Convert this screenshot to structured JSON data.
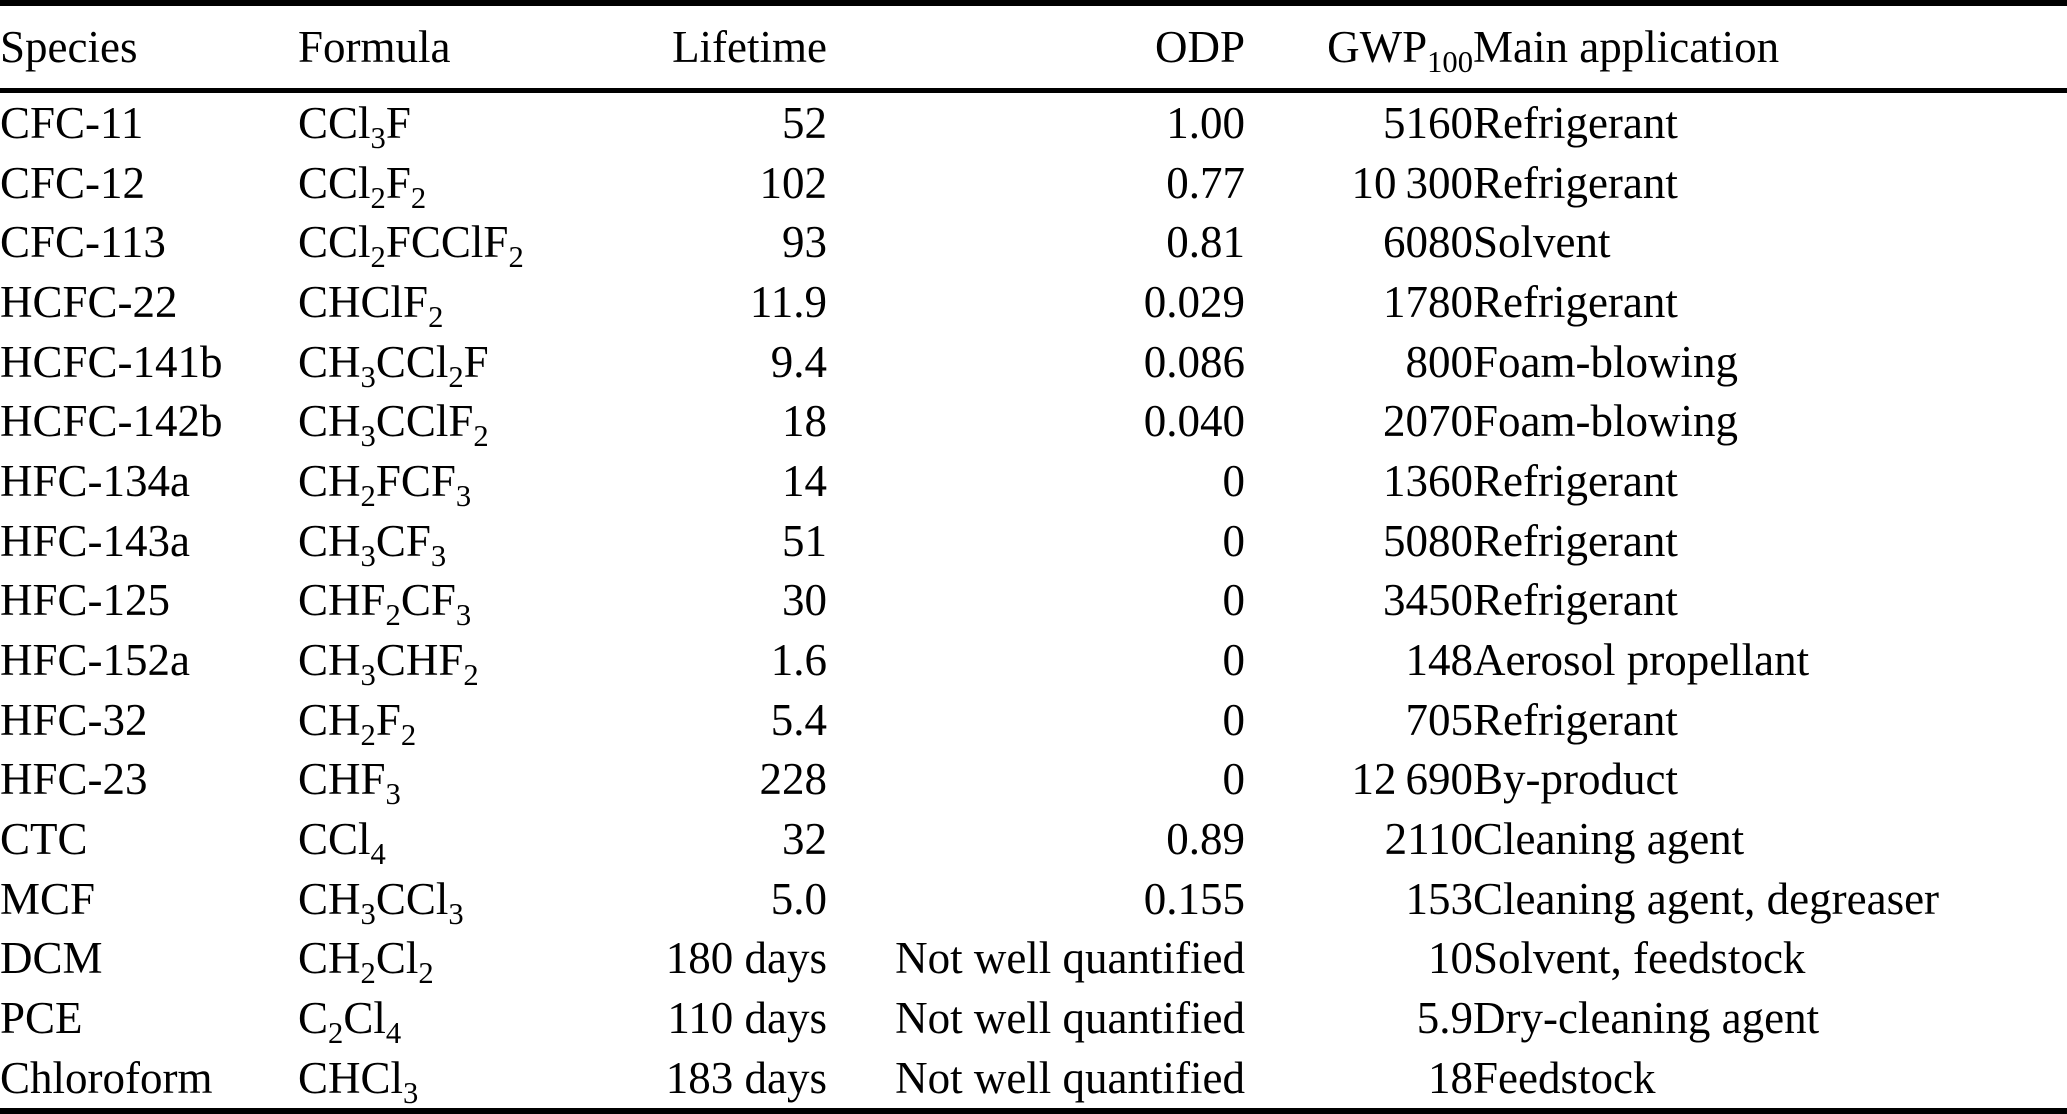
{
  "colors": {
    "text": "#000000",
    "background": "#ffffff",
    "rule": "#000000"
  },
  "table": {
    "columns": [
      {
        "key": "species",
        "label": "Species",
        "align": "left"
      },
      {
        "key": "formula",
        "label": "Formula",
        "align": "left"
      },
      {
        "key": "lifetime",
        "label": "Lifetime",
        "align": "right"
      },
      {
        "key": "odp",
        "label": "ODP",
        "align": "right"
      },
      {
        "key": "gwp",
        "label": "GWP_100_",
        "align": "right"
      },
      {
        "key": "app",
        "label": "Main application",
        "align": "left"
      }
    ],
    "rows": [
      {
        "species": "CFC-11",
        "formula": "CCl_3_F",
        "lifetime": "52",
        "odp": "1.00",
        "gwp": "5160",
        "app": "Refrigerant"
      },
      {
        "species": "CFC-12",
        "formula": "CCl_2_F_2_",
        "lifetime": "102",
        "odp": "0.77",
        "gwp": "10 300",
        "app": "Refrigerant"
      },
      {
        "species": "CFC-113",
        "formula": "CCl_2_FCClF_2_",
        "lifetime": "93",
        "odp": "0.81",
        "gwp": "6080",
        "app": "Solvent"
      },
      {
        "species": "HCFC-22",
        "formula": "CHClF_2_",
        "lifetime": "11.9",
        "odp": "0.029",
        "gwp": "1780",
        "app": "Refrigerant"
      },
      {
        "species": "HCFC-141b",
        "formula": "CH_3_CCl_2_F",
        "lifetime": "9.4",
        "odp": "0.086",
        "gwp": "800",
        "app": "Foam-blowing"
      },
      {
        "species": "HCFC-142b",
        "formula": "CH_3_CClF_2_",
        "lifetime": "18",
        "odp": "0.040",
        "gwp": "2070",
        "app": "Foam-blowing"
      },
      {
        "species": "HFC-134a",
        "formula": "CH_2_FCF_3_",
        "lifetime": "14",
        "odp": "0",
        "gwp": "1360",
        "app": "Refrigerant"
      },
      {
        "species": "HFC-143a",
        "formula": "CH_3_CF_3_",
        "lifetime": "51",
        "odp": "0",
        "gwp": "5080",
        "app": "Refrigerant"
      },
      {
        "species": "HFC-125",
        "formula": "CHF_2_CF_3_",
        "lifetime": "30",
        "odp": "0",
        "gwp": "3450",
        "app": "Refrigerant"
      },
      {
        "species": "HFC-152a",
        "formula": "CH_3_CHF_2_",
        "lifetime": "1.6",
        "odp": "0",
        "gwp": "148",
        "app": "Aerosol propellant"
      },
      {
        "species": "HFC-32",
        "formula": "CH_2_F_2_",
        "lifetime": "5.4",
        "odp": "0",
        "gwp": "705",
        "app": "Refrigerant"
      },
      {
        "species": "HFC-23",
        "formula": "CHF_3_",
        "lifetime": "228",
        "odp": "0",
        "gwp": "12 690",
        "app": "By-product"
      },
      {
        "species": "CTC",
        "formula": "CCl_4_",
        "lifetime": "32",
        "odp": "0.89",
        "gwp": "2110",
        "app": "Cleaning agent"
      },
      {
        "species": "MCF",
        "formula": "CH_3_CCl_3_",
        "lifetime": "5.0",
        "odp": "0.155",
        "gwp": "153",
        "app": "Cleaning agent, degreaser"
      },
      {
        "species": "DCM",
        "formula": "CH_2_Cl_2_",
        "lifetime": "180 days",
        "odp": "Not well quantified",
        "gwp": "10",
        "app": "Solvent, feedstock"
      },
      {
        "species": "PCE",
        "formula": "C_2_Cl_4_",
        "lifetime": "110 days",
        "odp": "Not well quantified",
        "gwp": "5.9",
        "app": "Dry-cleaning agent"
      },
      {
        "species": "Chloroform",
        "formula": "CHCl_3_",
        "lifetime": "183 days",
        "odp": "Not well quantified",
        "gwp": "18",
        "app": "Feedstock"
      }
    ]
  }
}
